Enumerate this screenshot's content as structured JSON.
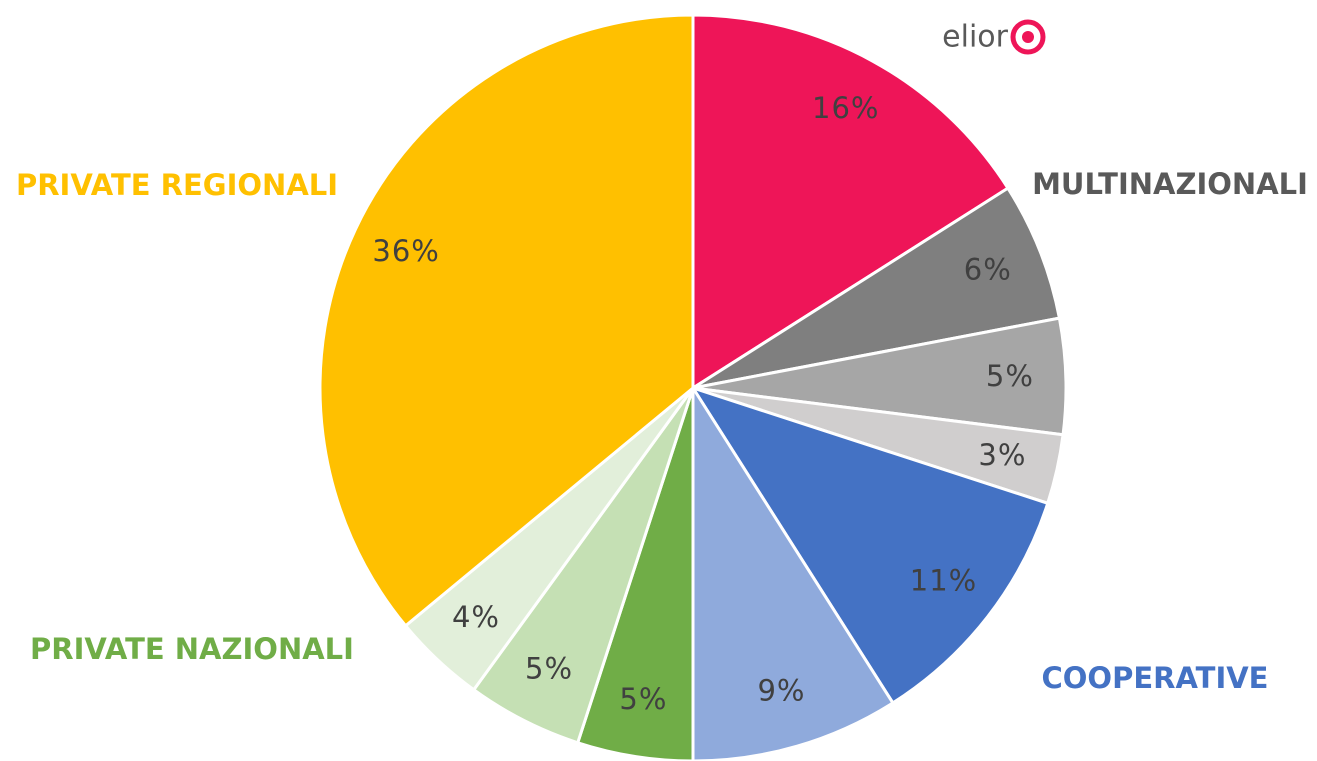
{
  "chart_data": {
    "type": "pie",
    "groups": [
      {
        "name": "elior",
        "color": "#595959",
        "values": [
          16
        ],
        "value_labels": [
          "16%"
        ],
        "colors": [
          "#ee1558"
        ]
      },
      {
        "name": "MULTINAZIONALI",
        "color": "#595959",
        "values": [
          6,
          5,
          3
        ],
        "value_labels": [
          "6%",
          "5%",
          "3%"
        ],
        "colors": [
          "#7f7f7f",
          "#a6a6a6",
          "#d0cece"
        ]
      },
      {
        "name": "COOPERATIVE",
        "color": "#4472c4",
        "values": [
          11,
          9
        ],
        "value_labels": [
          "11%",
          "9%"
        ],
        "colors": [
          "#4472c4",
          "#8faadc"
        ]
      },
      {
        "name": "PRIVATE NAZIONALI",
        "color": "#70ad47",
        "values": [
          5,
          5,
          4
        ],
        "value_labels": [
          "5%",
          "5%",
          "4%"
        ],
        "colors": [
          "#70ad47",
          "#c5e0b4",
          "#e2efda"
        ]
      },
      {
        "name": "PRIVATE REGIONALI",
        "color": "#ffc000",
        "values": [
          36
        ],
        "value_labels": [
          "36%"
        ],
        "colors": [
          "#ffc000"
        ]
      }
    ]
  }
}
